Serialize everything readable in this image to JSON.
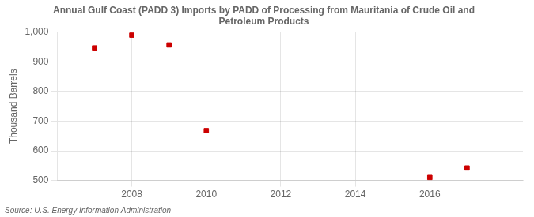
{
  "chart_data": {
    "type": "scatter",
    "title": [
      "Annual Gulf Coast (PADD 3) Imports by PADD of Processing from Mauritania of Crude Oil and",
      "Petroleum Products"
    ],
    "y_label": "Thousand Barrels",
    "annotations": [
      "Source: U.S. Energy Information Administration"
    ],
    "x": [
      2007,
      2008,
      2009,
      2010,
      2016,
      2017
    ],
    "values": [
      947,
      990,
      957,
      668,
      510,
      542
    ],
    "color": "#cc0000",
    "marker": "square",
    "xlim": [
      2006.0,
      2018.5
    ],
    "xticks": [
      2008,
      2010,
      2012,
      2014,
      2016
    ],
    "ylim": [
      500,
      1000
    ],
    "yticks": [
      500,
      600,
      700,
      800,
      900,
      {
        "value": 1000,
        "label": "1,000"
      }
    ],
    "grid": true
  }
}
